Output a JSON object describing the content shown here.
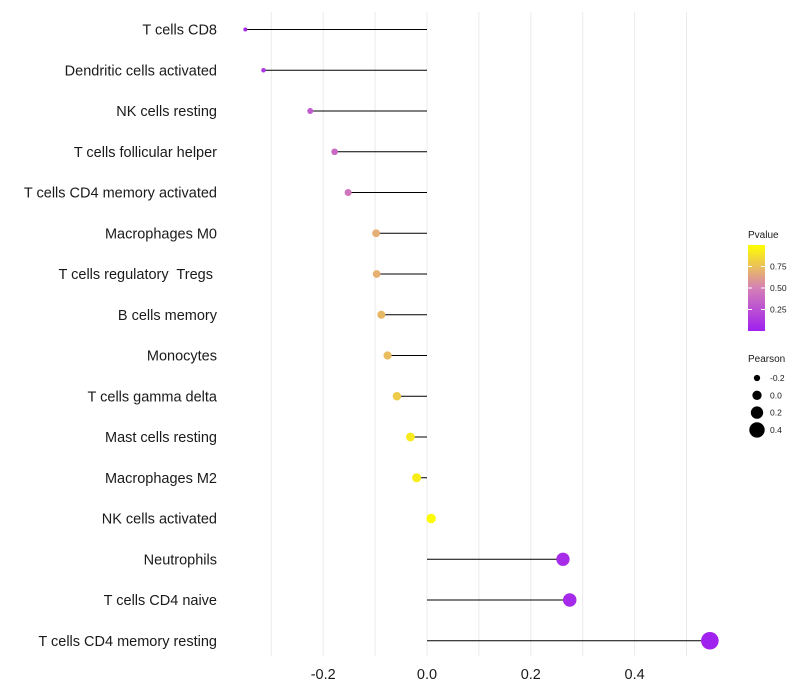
{
  "chart_data": {
    "type": "lollipop",
    "title": "",
    "xlabel": "",
    "ylabel": "",
    "xlim": [
      -0.35,
      0.56
    ],
    "grid": true,
    "x_ticks": [
      -0.2,
      0.0,
      0.2,
      0.4
    ],
    "x_tick_labels": [
      "-0.2",
      "0.0",
      "0.2",
      "0.4"
    ],
    "series": [
      {
        "name": "T cells CD8",
        "value": -0.35,
        "pvalue": 0.05
      },
      {
        "name": "Dendritic cells activated",
        "value": -0.315,
        "pvalue": 0.12
      },
      {
        "name": "NK cells resting",
        "value": -0.225,
        "pvalue": 0.3
      },
      {
        "name": "T cells follicular helper",
        "value": -0.178,
        "pvalue": 0.38
      },
      {
        "name": "T cells CD4 memory activated",
        "value": -0.152,
        "pvalue": 0.45
      },
      {
        "name": "Macrophages M0",
        "value": -0.098,
        "pvalue": 0.68
      },
      {
        "name": "T cells regulatory  Tregs ",
        "value": -0.097,
        "pvalue": 0.69
      },
      {
        "name": "B cells memory",
        "value": -0.088,
        "pvalue": 0.72
      },
      {
        "name": "Monocytes",
        "value": -0.076,
        "pvalue": 0.74
      },
      {
        "name": "T cells gamma delta",
        "value": -0.058,
        "pvalue": 0.8
      },
      {
        "name": "Mast cells resting",
        "value": -0.032,
        "pvalue": 0.92
      },
      {
        "name": "Macrophages M2",
        "value": -0.02,
        "pvalue": 0.93
      },
      {
        "name": "NK cells activated",
        "value": 0.008,
        "pvalue": 0.99
      },
      {
        "name": "Neutrophils",
        "value": 0.262,
        "pvalue": 0.06
      },
      {
        "name": "T cells CD4 naive",
        "value": 0.275,
        "pvalue": 0.05
      },
      {
        "name": "T cells CD4 memory resting",
        "value": 0.545,
        "pvalue": 0.005
      }
    ],
    "legend_color": {
      "title": "Pvalue",
      "ticks": [
        0.75,
        0.5,
        0.25
      ],
      "tick_labels": [
        "0.75",
        "0.50",
        "0.25"
      ],
      "range": [
        0.0,
        1.0
      ],
      "low_color": "#a020f0",
      "mid_color": "#d580b6",
      "high_color": "#ffff00",
      "placement": "right"
    },
    "legend_size": {
      "title": "Pearson",
      "values": [
        -0.2,
        0.0,
        0.2,
        0.4
      ],
      "labels": [
        "-0.2",
        "0.0",
        "0.2",
        "0.4"
      ],
      "placement": "right"
    }
  }
}
